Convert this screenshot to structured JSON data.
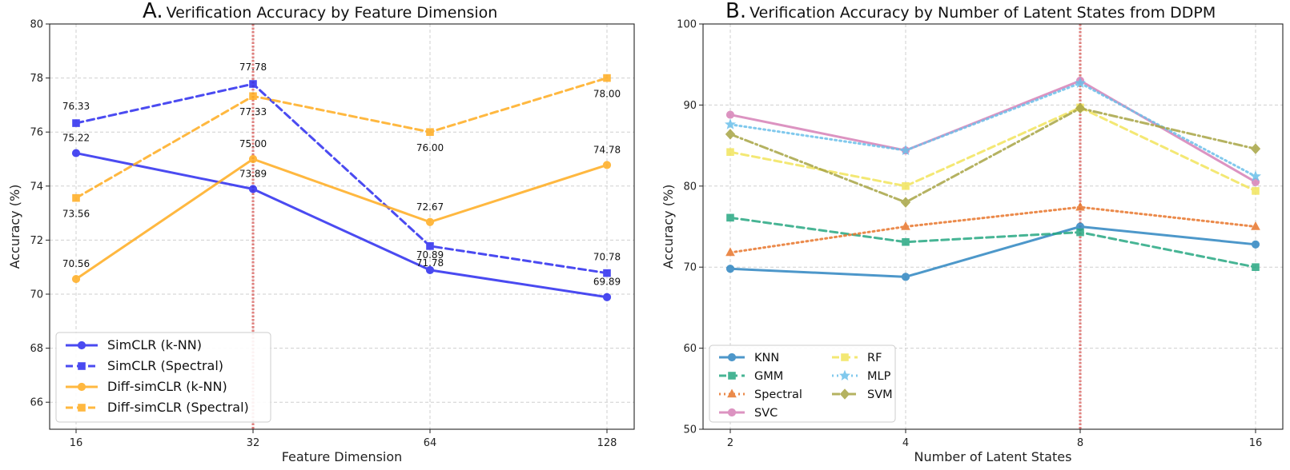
{
  "chart_data": [
    {
      "type": "line",
      "panel": "A.",
      "title": "Verification Accuracy by Feature Dimension",
      "xlabel": "Feature Dimension",
      "ylabel": "Accuracy (%)",
      "categories": [
        "16",
        "32",
        "64",
        "128"
      ],
      "ylim": [
        65,
        80
      ],
      "yticks": [
        66,
        68,
        70,
        72,
        74,
        76,
        78,
        80
      ],
      "grid": true,
      "highlight_category": "32",
      "legend_position": "lower-left",
      "series": [
        {
          "name": "SimCLR (k-NN)",
          "color": "#2b2bef",
          "marker": "circle",
          "dash": "solid",
          "values": [
            75.22,
            73.89,
            70.89,
            69.89
          ],
          "labels": [
            "75.22",
            "73.89",
            "70.89",
            "69.89"
          ]
        },
        {
          "name": "SimCLR (Spectral)",
          "color": "#2b2bef",
          "marker": "square",
          "dash": "dashed",
          "values": [
            76.33,
            77.78,
            71.78,
            70.78
          ],
          "labels": [
            "76.33",
            "77.78",
            "71.78",
            "70.78"
          ]
        },
        {
          "name": "Diff-simCLR (k-NN)",
          "color": "#ffac1f",
          "marker": "circle",
          "dash": "solid",
          "values": [
            70.56,
            75.0,
            72.67,
            74.78
          ],
          "labels": [
            "70.56",
            "75.00",
            "72.67",
            "74.78"
          ]
        },
        {
          "name": "Diff-simCLR (Spectral)",
          "color": "#ffac1f",
          "marker": "square",
          "dash": "dashed",
          "values": [
            73.56,
            77.33,
            76.0,
            78.0
          ],
          "labels": [
            "73.56",
            "77.33",
            "76.00",
            "78.00"
          ]
        }
      ]
    },
    {
      "type": "line",
      "panel": "B.",
      "title": "Verification Accuracy by Number of Latent States from DDPM",
      "xlabel": "Number of Latent States",
      "ylabel": "Accuracy (%)",
      "categories": [
        "2",
        "4",
        "8",
        "16"
      ],
      "ylim": [
        50,
        100
      ],
      "yticks": [
        50,
        60,
        70,
        80,
        90,
        100
      ],
      "grid": true,
      "highlight_category": "8",
      "legend_position": "lower-left",
      "series": [
        {
          "name": "KNN",
          "color": "#2e86c1",
          "marker": "circle",
          "dash": "solid",
          "values": [
            69.8,
            68.8,
            75.0,
            72.8
          ]
        },
        {
          "name": "GMM",
          "color": "#27a882",
          "marker": "square",
          "dash": "dashed",
          "values": [
            76.1,
            73.1,
            74.3,
            70.0
          ]
        },
        {
          "name": "Spectral",
          "color": "#e8762c",
          "marker": "triangle",
          "dash": "dotted",
          "values": [
            71.8,
            75.0,
            77.4,
            75.0
          ]
        },
        {
          "name": "SVC",
          "color": "#d681b7",
          "marker": "circle",
          "dash": "solid",
          "values": [
            88.8,
            84.4,
            93.0,
            80.5
          ]
        },
        {
          "name": "RF",
          "color": "#f2e45c",
          "marker": "square",
          "dash": "dashed",
          "values": [
            84.2,
            80.0,
            89.7,
            79.4
          ]
        },
        {
          "name": "MLP",
          "color": "#6cc0ea",
          "marker": "star",
          "dash": "dotted",
          "values": [
            87.6,
            84.4,
            92.7,
            81.2
          ]
        },
        {
          "name": "SVM",
          "color": "#a8a545",
          "marker": "diamond",
          "dash": "dashdot",
          "values": [
            86.4,
            78.0,
            89.6,
            84.6
          ]
        }
      ]
    }
  ]
}
